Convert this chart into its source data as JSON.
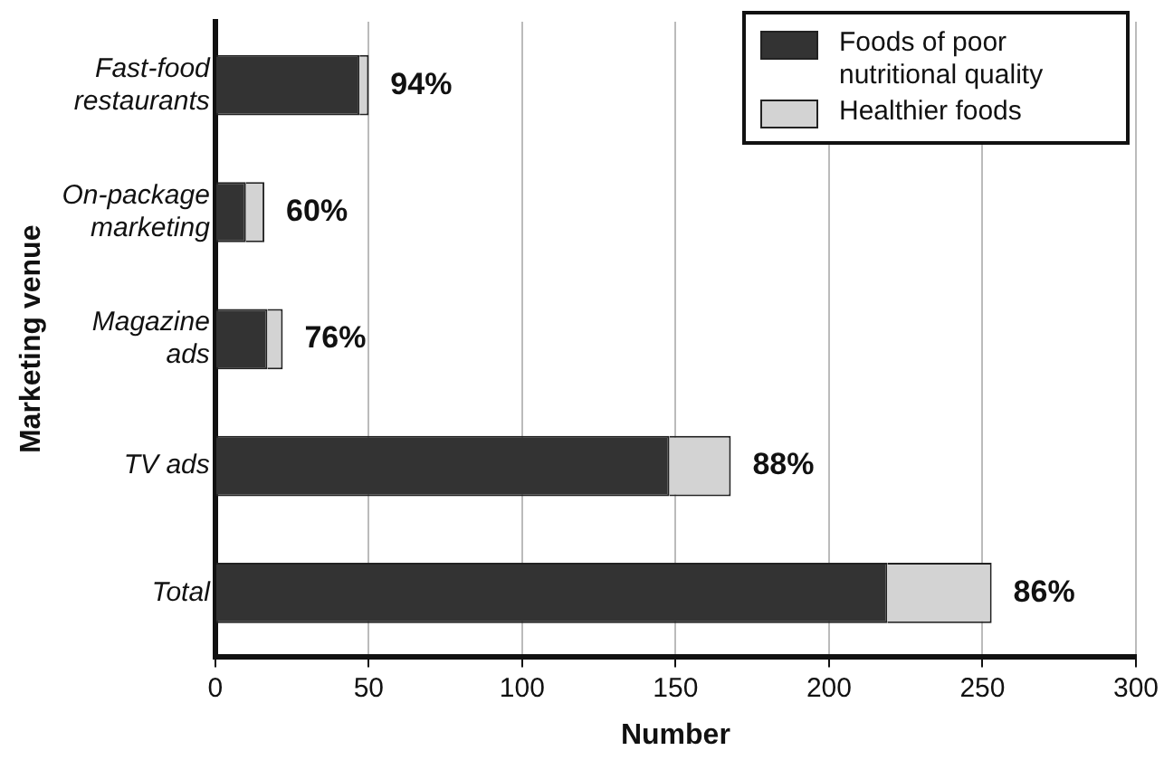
{
  "chart_data": {
    "type": "bar",
    "orientation": "horizontal",
    "stacked": true,
    "categories": [
      "Fast-food restaurants",
      "On-package marketing",
      "Magazine ads",
      "TV ads",
      "Total"
    ],
    "series": [
      {
        "name": "Foods of poor nutritional quality",
        "color": "#333333",
        "values": [
          47,
          10,
          17,
          148,
          219
        ]
      },
      {
        "name": "Healthier foods",
        "color": "#d3d3d3",
        "values": [
          3,
          6,
          5,
          20,
          34
        ]
      }
    ],
    "annotations": [
      {
        "text": "94%",
        "x": 50,
        "y": "Fast-food restaurants"
      },
      {
        "text": "60%",
        "x": 16,
        "y": "On-package marketing"
      },
      {
        "text": "76%",
        "x": 22,
        "y": "Magazine ads"
      },
      {
        "text": "88%",
        "x": 168,
        "y": "TV ads"
      },
      {
        "text": "86%",
        "x": 253,
        "y": "Total"
      }
    ],
    "xlabel": "Number",
    "ylabel": "Marketing venue",
    "xlim": [
      0,
      300
    ],
    "xticks": [
      0,
      50,
      100,
      150,
      200,
      250,
      300
    ],
    "grid": "x",
    "legend": "top right"
  }
}
